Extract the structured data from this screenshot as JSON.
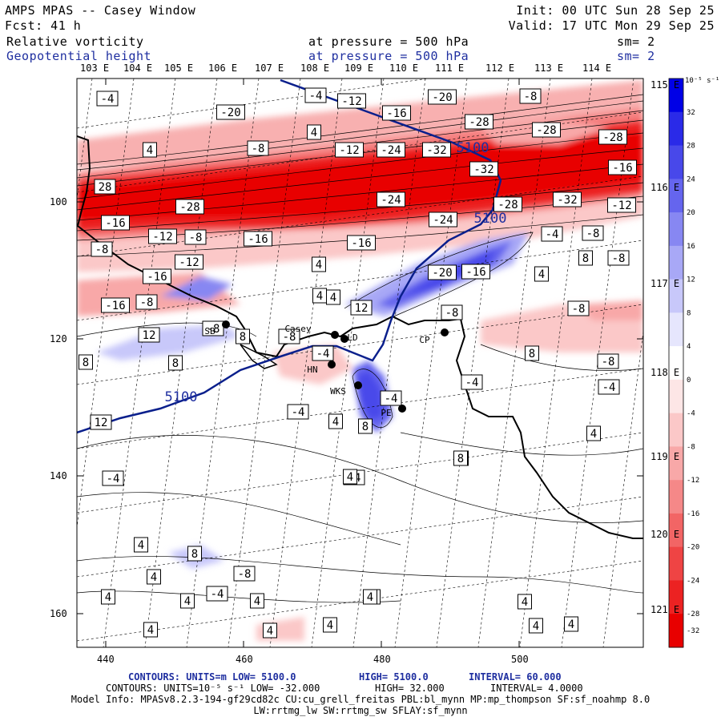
{
  "header": {
    "title": "AMPS MPAS -- Casey Window",
    "init": "Init: 00 UTC Sun 28 Sep 25",
    "fcst": "Fcst:   41 h",
    "valid": "Valid: 17 UTC Mon 29 Sep 25",
    "field1": "Relative vorticity",
    "field1_level": "at pressure =  500 hPa",
    "field1_sm": "sm= 2",
    "field2": "Geopotential height",
    "field2_level": "at pressure =  500 hPa",
    "field2_sm": "sm= 2"
  },
  "axes": {
    "top_lon": [
      "103 E",
      "104 E",
      "105 E",
      "106 E",
      "107 E",
      "108 E",
      "109 E",
      "110 E",
      "111 E",
      "112 E",
      "113 E",
      "114 E"
    ],
    "right_lon": [
      "115 E",
      "116 E",
      "117 E",
      "118 E",
      "119 E",
      "120 E",
      "121 E"
    ],
    "left_ticks": [
      "100",
      "120",
      "140",
      "160"
    ],
    "bottom_ticks": [
      "440",
      "460",
      "480",
      "500"
    ]
  },
  "colorbar": {
    "unit_label": "10⁻⁵ s⁻¹",
    "ticks": [
      "32",
      "28",
      "24",
      "20",
      "16",
      "12",
      "8",
      "4",
      "0",
      "-4",
      "-8",
      "-12",
      "-16",
      "-20",
      "-24",
      "-28",
      "-32"
    ],
    "colors": [
      "#0000e6",
      "#2a2ae8",
      "#4848ea",
      "#6565ee",
      "#8787f2",
      "#a8a8f6",
      "#c8c8fa",
      "#e6e6fd",
      "#ffffff",
      "#fde6e6",
      "#fbc8c8",
      "#f8a8a8",
      "#f58888",
      "#f26565",
      "#ef4444",
      "#ec2222",
      "#e80000"
    ]
  },
  "stations": [
    {
      "code": "SB"
    },
    {
      "code": "Casey"
    },
    {
      "code": "LD"
    },
    {
      "code": "HN"
    },
    {
      "code": "WKS"
    },
    {
      "code": "CP"
    },
    {
      "code": "PE"
    }
  ],
  "height_contours": [
    {
      "label": "5100"
    },
    {
      "label": "5100"
    },
    {
      "label": "5100"
    }
  ],
  "vorticity_labels": [
    "-4",
    "-20",
    "-12",
    "-16",
    "-20",
    "-8",
    "-4",
    "-8",
    "4",
    "4",
    "-12",
    "-24",
    "-32",
    "-28",
    "-28",
    "-28",
    "-32",
    "-16",
    "28",
    "-28",
    "-24",
    "-28",
    "-24",
    "-32",
    "-12",
    "-16",
    "-12",
    "-8",
    "-16",
    "-16",
    "4",
    "-8",
    "-12",
    "-8",
    "-4",
    "8",
    "-8",
    "-16",
    "4",
    "-20",
    "-16",
    "4",
    "-8",
    "4",
    "-16",
    "-8",
    "12",
    "-8",
    "-8",
    "12",
    "8",
    "8",
    "-8",
    "-4",
    "8",
    "-8",
    "8",
    "-4",
    "-4",
    "12",
    "-4",
    "-4",
    "4",
    "8",
    "4",
    "-4",
    "4",
    "-4",
    "8",
    "4",
    "4",
    "8",
    "4",
    "-4",
    "4",
    "4",
    "-8",
    "4",
    "4",
    "4",
    "4",
    "4",
    "4",
    "4",
    "4",
    "4"
  ],
  "footer": {
    "line1_a": "CONTOURS:  UNITS=m  LOW=  5100.0",
    "line1_b": "HIGH=  5100.0",
    "line1_c": "INTERVAL=  60.000",
    "line2_a": "CONTOURS:  UNITS=10⁻⁵ s⁻¹  LOW= -32.000",
    "line2_b": "HIGH=  32.000",
    "line2_c": "INTERVAL=   4.0000",
    "model_info": "Model Info: MPASv8.2.3-194-gf29cd82c CU:cu_grell_freitas PBL:bl_mynn MP:mp_thompson SF:sf_noahmp 8.0",
    "model_info2": "LW:rrtmg_lw SW:rrtmg_sw SFLAY:sf_mynn"
  }
}
